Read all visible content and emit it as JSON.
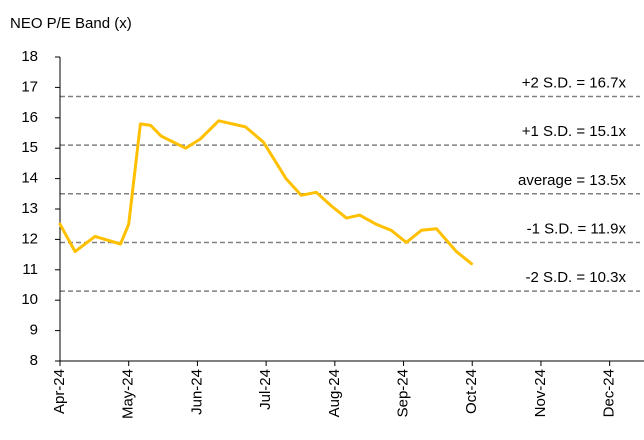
{
  "chart_data": {
    "type": "line",
    "title": "NEO P/E Band (x)",
    "x": [
      0,
      0.22,
      0.51,
      0.88,
      1.0,
      1.17,
      1.32,
      1.47,
      1.83,
      2.04,
      2.31,
      2.7,
      2.96,
      3.29,
      3.51,
      3.73,
      3.95,
      4.17,
      4.36,
      4.6,
      4.82,
      5.04,
      5.26,
      5.48,
      5.77,
      5.99
    ],
    "series": [
      {
        "color": "#ffc000",
        "values": [
          12.5,
          11.6,
          12.1,
          11.85,
          12.5,
          15.8,
          15.75,
          15.4,
          15.0,
          15.3,
          15.9,
          15.7,
          15.2,
          14.0,
          13.45,
          13.55,
          13.1,
          12.7,
          12.8,
          12.5,
          12.3,
          11.9,
          12.3,
          12.35,
          11.6,
          11.2
        ]
      }
    ],
    "bands": [
      {
        "label": "+2 S.D. = 16.7x",
        "value": 16.7
      },
      {
        "label": "+1 S.D. = 15.1x",
        "value": 15.1
      },
      {
        "label": "average = 13.5x",
        "value": 13.5
      },
      {
        "label": "-1 S.D. = 11.9x",
        "value": 11.9
      },
      {
        "label": "-2 S.D. = 10.3x",
        "value": 10.3
      }
    ],
    "band_color": "#808080",
    "xlim": [
      0,
      8.5
    ],
    "xticks": [
      {
        "value": 0,
        "label": "Apr-24"
      },
      {
        "value": 1,
        "label": "May-24"
      },
      {
        "value": 2,
        "label": "Jun-24"
      },
      {
        "value": 3,
        "label": "Jul-24"
      },
      {
        "value": 4,
        "label": "Aug-24"
      },
      {
        "value": 5,
        "label": "Sep-24"
      },
      {
        "value": 6,
        "label": "Oct-24"
      },
      {
        "value": 7,
        "label": "Nov-24"
      },
      {
        "value": 8,
        "label": "Dec-24"
      }
    ],
    "ylim": [
      8,
      18
    ],
    "yticks": [
      8,
      9,
      10,
      11,
      12,
      13,
      14,
      15,
      16,
      17,
      18
    ]
  }
}
